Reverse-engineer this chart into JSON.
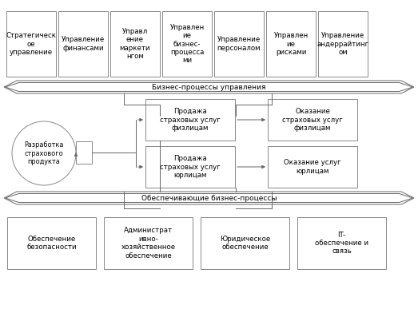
{
  "top_boxes": [
    "Стратегическ\nое\nуправление",
    "Управление\nфинансами",
    "Управл\nение\nмаркети\nнгом",
    "Управлен\nие\nбизнес-\nпроцесса\nми",
    "Управление\nперсоналом",
    "Управлен\nие\nрисками",
    "Управление\nандеррайтинг\nом"
  ],
  "middle_left_circle": "Разработка\nстрахового\nпродукта",
  "middle_boxes": [
    "Продажа\nстраховых услуг\nфизлицам",
    "Продажа\nстраховых услуг\nюрлицам"
  ],
  "middle_right_boxes": [
    "Оказание\nстраховых услуг\nфизлицам",
    "Оказание услуг\nюрлицам"
  ],
  "top_arrow_label": "Бизнес-процессы управления",
  "bottom_arrow_label": "Обеспечивающие бизнес-процессы",
  "bottom_boxes": [
    "Обеспечение\nбезопасности",
    "Администрат\nивно-\nхозяйственное\nобеспечение",
    "Юридическое\nобеспечение",
    "IT-\nобеспечение и\nсвязь"
  ],
  "bg_color": "#ffffff",
  "box_edge_color": "#888888",
  "box_face_color": "#ffffff",
  "text_color": "#000000",
  "font_size": 6.2
}
